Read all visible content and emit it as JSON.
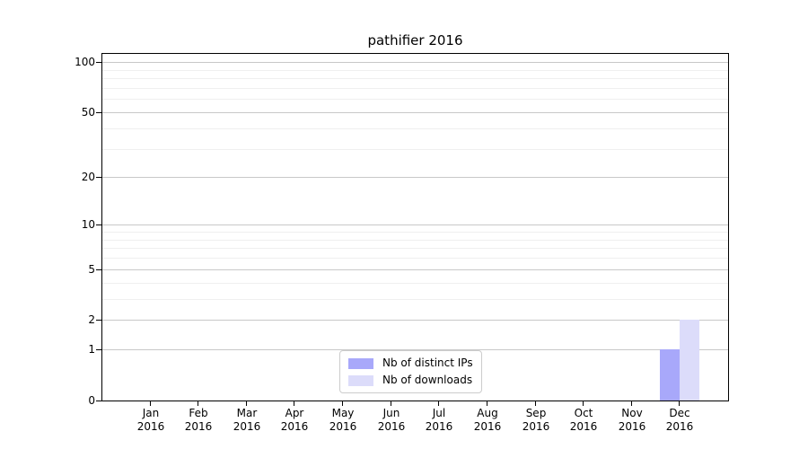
{
  "title": "pathifier 2016",
  "chart_data": {
    "type": "bar",
    "title": "pathifier 2016",
    "x_month_labels": [
      "Jan",
      "Feb",
      "Mar",
      "Apr",
      "May",
      "Jun",
      "Jul",
      "Aug",
      "Sep",
      "Oct",
      "Nov",
      "Dec"
    ],
    "x_year_label": "2016",
    "series": [
      {
        "name": "Nb of distinct IPs",
        "color": "#a8a8fa",
        "values": [
          0,
          0,
          0,
          0,
          0,
          0,
          0,
          0,
          0,
          0,
          0,
          1
        ]
      },
      {
        "name": "Nb of downloads",
        "color": "#dcdcfa",
        "values": [
          0,
          0,
          0,
          0,
          0,
          0,
          0,
          0,
          0,
          0,
          0,
          2
        ]
      }
    ],
    "y_scale": "log1p",
    "y_max": 112,
    "y_major_ticks": [
      0,
      1,
      2,
      5,
      10,
      20,
      50,
      100
    ],
    "y_minor_ticks": [
      3,
      4,
      6,
      7,
      8,
      9,
      30,
      40,
      60,
      70,
      80,
      90
    ],
    "grid": "horizontal",
    "legend_position": "lower center"
  },
  "colors": {
    "background": "#ffffff",
    "spine": "#000000",
    "grid_major": "#c8c8c8",
    "grid_minor": "#efefef",
    "text": "#000000",
    "legend_border": "#cccccc"
  }
}
